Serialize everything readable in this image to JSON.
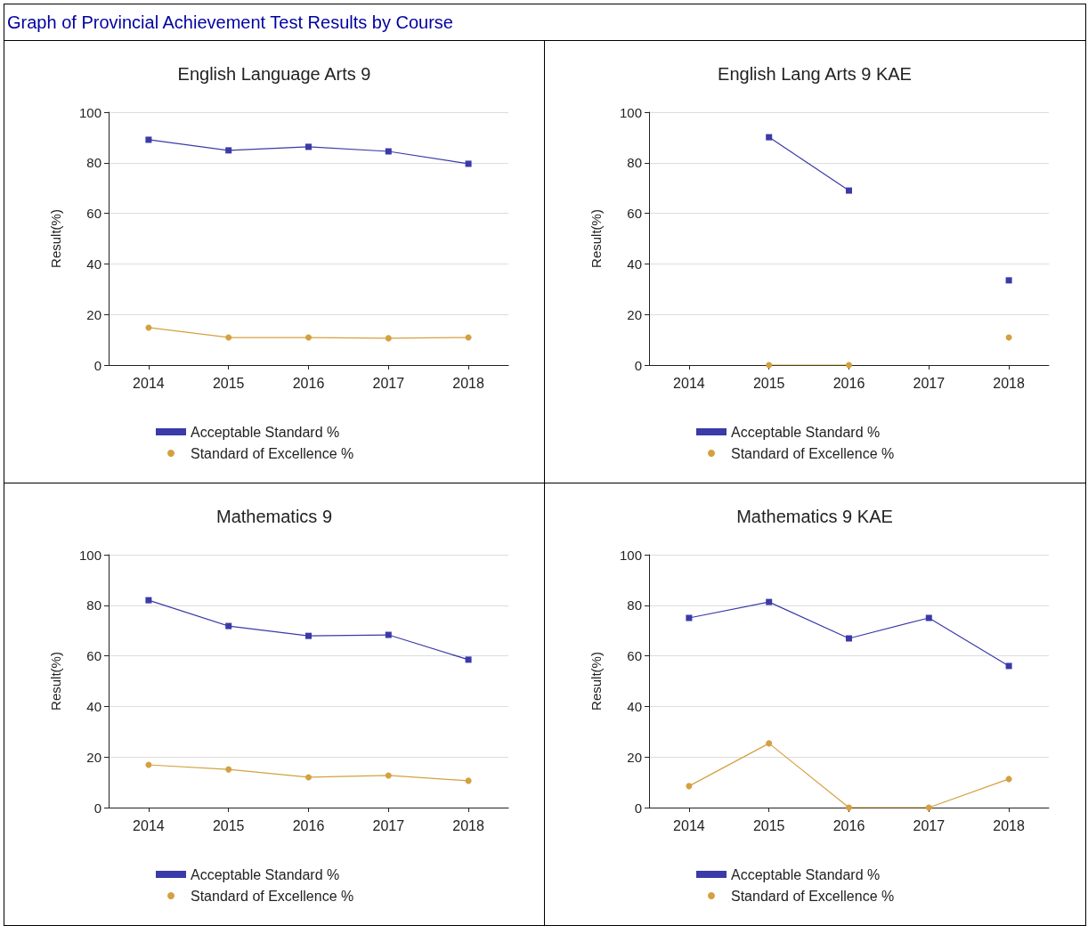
{
  "chart_data": [
    {
      "type": "other",
      "title": "Graph of Provincial Achievement Test Results by Course"
    },
    {
      "type": "line",
      "title": "English Language Arts 9",
      "ylabel": "Result(%)",
      "categories": [
        "2014",
        "2015",
        "2016",
        "2017",
        "2018"
      ],
      "ylim": [
        0,
        100
      ],
      "yticks": [
        0,
        20,
        40,
        60,
        80,
        100
      ],
      "grid": "y",
      "legend": "bottom",
      "series": [
        {
          "name": "Acceptable Standard %",
          "color": "#3a3aa8",
          "marker": "square",
          "values": [
            89.1,
            84.9,
            86.3,
            84.5,
            79.6
          ]
        },
        {
          "name": "Standard of Excellence %",
          "color": "#d4a040",
          "marker": "circle",
          "values": [
            14.8,
            10.9,
            10.9,
            10.6,
            10.9
          ]
        }
      ]
    },
    {
      "type": "line",
      "title": "English Lang Arts 9 KAE",
      "ylabel": "Result(%)",
      "categories": [
        "2014",
        "2015",
        "2016",
        "2017",
        "2018"
      ],
      "ylim": [
        0,
        100
      ],
      "yticks": [
        0,
        20,
        40,
        60,
        80,
        100
      ],
      "grid": "y",
      "legend": "bottom",
      "series": [
        {
          "name": "Acceptable Standard %",
          "color": "#3a3aa8",
          "marker": "square",
          "values": [
            null,
            90.1,
            69.0,
            null,
            33.5
          ]
        },
        {
          "name": "Standard of Excellence %",
          "color": "#d4a040",
          "marker": "circle",
          "values": [
            null,
            0,
            0,
            null,
            10.9
          ]
        }
      ]
    },
    {
      "type": "line",
      "title": "Mathematics 9",
      "ylabel": "Result(%)",
      "categories": [
        "2014",
        "2015",
        "2016",
        "2017",
        "2018"
      ],
      "ylim": [
        0,
        100
      ],
      "yticks": [
        0,
        20,
        40,
        60,
        80,
        100
      ],
      "grid": "y",
      "legend": "bottom",
      "series": [
        {
          "name": "Acceptable Standard %",
          "color": "#3a3aa8",
          "marker": "square",
          "values": [
            82.0,
            71.8,
            67.9,
            68.3,
            58.5
          ]
        },
        {
          "name": "Standard of Excellence %",
          "color": "#d4a040",
          "marker": "circle",
          "values": [
            16.9,
            15.1,
            12.0,
            12.7,
            10.6
          ]
        }
      ]
    },
    {
      "type": "line",
      "title": "Mathematics 9 KAE",
      "ylabel": "Result(%)",
      "categories": [
        "2014",
        "2015",
        "2016",
        "2017",
        "2018"
      ],
      "ylim": [
        0,
        100
      ],
      "yticks": [
        0,
        20,
        40,
        60,
        80,
        100
      ],
      "grid": "y",
      "legend": "bottom",
      "series": [
        {
          "name": "Acceptable Standard %",
          "color": "#3a3aa8",
          "marker": "square",
          "values": [
            75.0,
            81.3,
            66.9,
            75.0,
            56.0
          ]
        },
        {
          "name": "Standard of Excellence %",
          "color": "#d4a040",
          "marker": "circle",
          "values": [
            8.5,
            25.4,
            0,
            0,
            11.3
          ]
        }
      ]
    }
  ]
}
